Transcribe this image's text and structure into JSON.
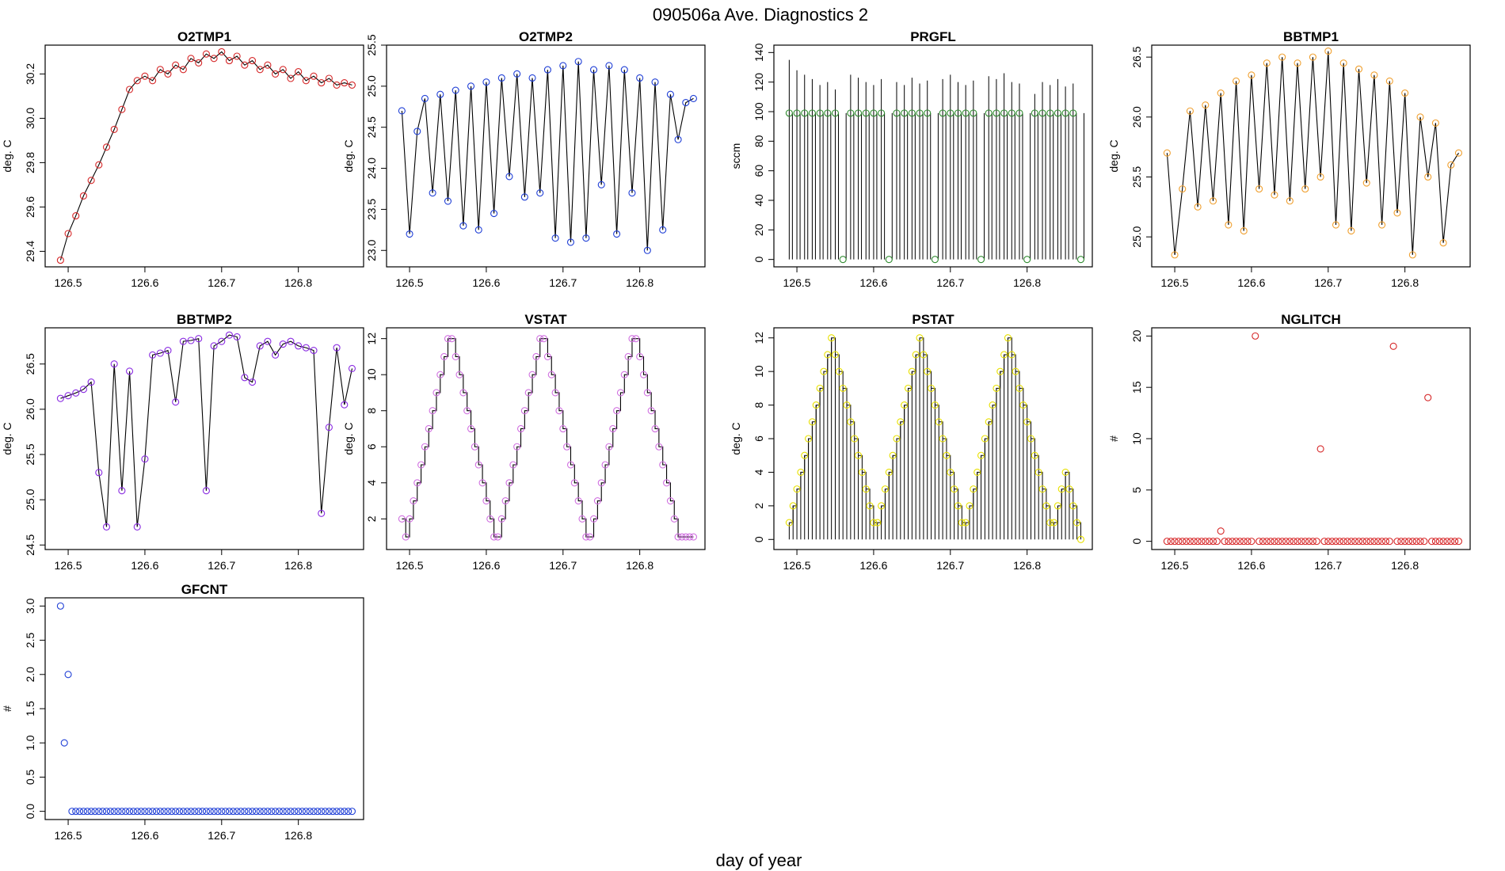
{
  "title": "090506a   Ave. Diagnostics 2",
  "xlabel": "day of year",
  "colors": {
    "line": "#000000",
    "frame": "#000000"
  },
  "chart_data": [
    {
      "name": "O2TMP1",
      "type": "line",
      "ylabel": "deg. C",
      "xlim": [
        126.47,
        126.885
      ],
      "ylim": [
        29.33,
        30.33
      ],
      "xticks": [
        126.5,
        126.6,
        126.7,
        126.8
      ],
      "yticks": [
        29.4,
        29.6,
        29.8,
        30.0,
        30.2
      ],
      "marker_color": "#d62728",
      "x": [
        126.49,
        126.5,
        126.51,
        126.52,
        126.53,
        126.54,
        126.55,
        126.56,
        126.57,
        126.58,
        126.59,
        126.6,
        126.61,
        126.62,
        126.63,
        126.64,
        126.65,
        126.66,
        126.67,
        126.68,
        126.69,
        126.7,
        126.71,
        126.72,
        126.73,
        126.74,
        126.75,
        126.76,
        126.77,
        126.78,
        126.79,
        126.8,
        126.81,
        126.82,
        126.83,
        126.84,
        126.85,
        126.86,
        126.87
      ],
      "values": [
        29.36,
        29.48,
        29.56,
        29.65,
        29.72,
        29.79,
        29.87,
        29.95,
        30.04,
        30.13,
        30.17,
        30.19,
        30.17,
        30.22,
        30.2,
        30.24,
        30.22,
        30.27,
        30.25,
        30.29,
        30.27,
        30.3,
        30.26,
        30.28,
        30.24,
        30.26,
        30.22,
        30.24,
        30.2,
        30.22,
        30.18,
        30.21,
        30.17,
        30.19,
        30.16,
        30.18,
        30.15,
        30.16,
        30.15
      ]
    },
    {
      "name": "O2TMP2",
      "type": "line",
      "ylabel": "deg. C",
      "xlim": [
        126.47,
        126.885
      ],
      "ylim": [
        22.8,
        25.5
      ],
      "xticks": [
        126.5,
        126.6,
        126.7,
        126.8
      ],
      "yticks": [
        23.0,
        23.5,
        24.0,
        24.5,
        25.0,
        25.5
      ],
      "marker_color": "#1f3fd6",
      "x": [
        126.49,
        126.5,
        126.51,
        126.52,
        126.53,
        126.54,
        126.55,
        126.56,
        126.57,
        126.58,
        126.59,
        126.6,
        126.61,
        126.62,
        126.63,
        126.64,
        126.65,
        126.66,
        126.67,
        126.68,
        126.69,
        126.7,
        126.71,
        126.72,
        126.73,
        126.74,
        126.75,
        126.76,
        126.77,
        126.78,
        126.79,
        126.8,
        126.81,
        126.82,
        126.83,
        126.84,
        126.85,
        126.86,
        126.87
      ],
      "values": [
        24.7,
        23.2,
        24.45,
        24.85,
        23.7,
        24.9,
        23.6,
        24.95,
        23.3,
        25.0,
        23.25,
        25.05,
        23.45,
        25.1,
        23.9,
        25.15,
        23.65,
        25.1,
        23.7,
        25.2,
        23.15,
        25.25,
        23.1,
        25.3,
        23.15,
        25.2,
        23.8,
        25.25,
        23.2,
        25.2,
        23.7,
        25.1,
        23.0,
        25.05,
        23.25,
        24.9,
        24.35,
        24.8,
        24.85
      ]
    },
    {
      "name": "PRGFL",
      "type": "spike",
      "ylabel": "sccm",
      "xlim": [
        126.47,
        126.885
      ],
      "ylim": [
        -5,
        145
      ],
      "xticks": [
        126.5,
        126.6,
        126.7,
        126.8
      ],
      "yticks": [
        0,
        20,
        40,
        60,
        80,
        100,
        120,
        140
      ],
      "marker_color": "#2e8b2e",
      "x": [
        126.49,
        126.5,
        126.51,
        126.52,
        126.53,
        126.54,
        126.55,
        126.56,
        126.57,
        126.58,
        126.59,
        126.6,
        126.61,
        126.62,
        126.63,
        126.64,
        126.65,
        126.66,
        126.67,
        126.68,
        126.69,
        126.7,
        126.71,
        126.72,
        126.73,
        126.74,
        126.75,
        126.76,
        126.77,
        126.78,
        126.79,
        126.8,
        126.81,
        126.82,
        126.83,
        126.84,
        126.85,
        126.86,
        126.87
      ],
      "peaks": [
        135,
        128,
        125,
        122,
        118,
        120,
        115,
        0,
        125,
        123,
        120,
        118,
        122,
        0,
        120,
        118,
        123,
        119,
        121,
        0,
        122,
        125,
        120,
        118,
        121,
        0,
        124,
        122,
        126,
        120,
        119,
        0,
        112,
        120,
        118,
        122,
        117,
        119,
        0
      ],
      "values": [
        99,
        99,
        99,
        99,
        99,
        99,
        99,
        0,
        99,
        99,
        99,
        99,
        99,
        0,
        99,
        99,
        99,
        99,
        99,
        0,
        99,
        99,
        99,
        99,
        99,
        0,
        99,
        99,
        99,
        99,
        99,
        0,
        99,
        99,
        99,
        99,
        99,
        99,
        0
      ]
    },
    {
      "name": "BBTMP1",
      "type": "line",
      "ylabel": "deg. C",
      "xlim": [
        126.47,
        126.885
      ],
      "ylim": [
        24.75,
        26.6
      ],
      "xticks": [
        126.5,
        126.6,
        126.7,
        126.8
      ],
      "yticks": [
        25.0,
        25.5,
        26.0,
        26.5
      ],
      "marker_color": "#f0a030",
      "x": [
        126.49,
        126.5,
        126.51,
        126.52,
        126.53,
        126.54,
        126.55,
        126.56,
        126.57,
        126.58,
        126.59,
        126.6,
        126.61,
        126.62,
        126.63,
        126.64,
        126.65,
        126.66,
        126.67,
        126.68,
        126.69,
        126.7,
        126.71,
        126.72,
        126.73,
        126.74,
        126.75,
        126.76,
        126.77,
        126.78,
        126.79,
        126.8,
        126.81,
        126.82,
        126.83,
        126.84,
        126.85,
        126.86,
        126.87
      ],
      "values": [
        25.7,
        24.85,
        25.4,
        26.05,
        25.25,
        26.1,
        25.3,
        26.2,
        25.1,
        26.3,
        25.05,
        26.35,
        25.4,
        26.45,
        25.35,
        26.5,
        25.3,
        26.45,
        25.4,
        26.5,
        25.5,
        26.55,
        25.1,
        26.45,
        25.05,
        26.4,
        25.45,
        26.35,
        25.1,
        26.3,
        25.2,
        26.2,
        24.85,
        26.0,
        25.5,
        25.95,
        24.95,
        25.6,
        25.7
      ]
    },
    {
      "name": "BBTMP2",
      "type": "line",
      "ylabel": "deg. C",
      "xlim": [
        126.47,
        126.885
      ],
      "ylim": [
        24.45,
        26.9
      ],
      "xticks": [
        126.5,
        126.6,
        126.7,
        126.8
      ],
      "yticks": [
        24.5,
        25.0,
        25.5,
        26.0,
        26.5
      ],
      "marker_color": "#8a2be2",
      "x": [
        126.49,
        126.5,
        126.51,
        126.52,
        126.53,
        126.54,
        126.55,
        126.56,
        126.57,
        126.58,
        126.59,
        126.6,
        126.61,
        126.62,
        126.63,
        126.64,
        126.65,
        126.66,
        126.67,
        126.68,
        126.69,
        126.7,
        126.71,
        126.72,
        126.73,
        126.74,
        126.75,
        126.76,
        126.77,
        126.78,
        126.79,
        126.8,
        126.81,
        126.82,
        126.83,
        126.84,
        126.85,
        126.86,
        126.87
      ],
      "values": [
        26.12,
        26.15,
        26.18,
        26.22,
        26.3,
        25.3,
        24.7,
        26.5,
        25.1,
        26.42,
        24.7,
        25.45,
        26.6,
        26.62,
        26.65,
        26.08,
        26.75,
        26.76,
        26.78,
        25.1,
        26.7,
        26.75,
        26.82,
        26.8,
        26.35,
        26.3,
        26.7,
        26.75,
        26.6,
        26.72,
        26.75,
        26.7,
        26.68,
        26.65,
        24.85,
        25.8,
        26.68,
        26.05,
        26.45
      ]
    },
    {
      "name": "VSTAT",
      "type": "step",
      "ylabel": "deg. C",
      "xlim": [
        126.47,
        126.885
      ],
      "ylim": [
        0.3,
        12.6
      ],
      "xticks": [
        126.5,
        126.6,
        126.7,
        126.8
      ],
      "yticks": [
        2,
        4,
        6,
        8,
        10,
        12
      ],
      "marker_color": "#d070e0",
      "x": [
        126.49,
        126.495,
        126.5,
        126.505,
        126.51,
        126.515,
        126.52,
        126.525,
        126.53,
        126.535,
        126.54,
        126.545,
        126.55,
        126.555,
        126.56,
        126.565,
        126.57,
        126.575,
        126.58,
        126.585,
        126.59,
        126.595,
        126.6,
        126.605,
        126.61,
        126.615,
        126.62,
        126.625,
        126.63,
        126.635,
        126.64,
        126.645,
        126.65,
        126.655,
        126.66,
        126.665,
        126.67,
        126.675,
        126.68,
        126.685,
        126.69,
        126.695,
        126.7,
        126.705,
        126.71,
        126.715,
        126.72,
        126.725,
        126.73,
        126.735,
        126.74,
        126.745,
        126.75,
        126.755,
        126.76,
        126.765,
        126.77,
        126.775,
        126.78,
        126.785,
        126.79,
        126.795,
        126.8,
        126.805,
        126.81,
        126.815,
        126.82,
        126.825,
        126.83,
        126.835,
        126.84,
        126.845,
        126.85,
        126.855,
        126.86,
        126.865,
        126.87
      ],
      "values": [
        2,
        1,
        2,
        3,
        4,
        5,
        6,
        7,
        8,
        9,
        10,
        11,
        12,
        12,
        11,
        10,
        9,
        8,
        7,
        6,
        5,
        4,
        3,
        2,
        1,
        1,
        2,
        3,
        4,
        5,
        6,
        7,
        8,
        9,
        10,
        11,
        12,
        12,
        11,
        10,
        9,
        8,
        7,
        6,
        5,
        4,
        3,
        2,
        1,
        1,
        2,
        3,
        4,
        5,
        6,
        7,
        8,
        9,
        10,
        11,
        12,
        12,
        11,
        10,
        9,
        8,
        7,
        6,
        5,
        4,
        3,
        2,
        1,
        1,
        1,
        1,
        1
      ]
    },
    {
      "name": "PSTAT",
      "type": "spike-step",
      "ylabel": "deg. C",
      "xlim": [
        126.47,
        126.885
      ],
      "ylim": [
        -0.6,
        12.6
      ],
      "xticks": [
        126.5,
        126.6,
        126.7,
        126.8
      ],
      "yticks": [
        0,
        2,
        4,
        6,
        8,
        10,
        12
      ],
      "marker_color": "#e8e000",
      "x": [
        126.49,
        126.495,
        126.5,
        126.505,
        126.51,
        126.515,
        126.52,
        126.525,
        126.53,
        126.535,
        126.54,
        126.545,
        126.55,
        126.555,
        126.56,
        126.565,
        126.57,
        126.575,
        126.58,
        126.585,
        126.59,
        126.595,
        126.6,
        126.605,
        126.61,
        126.615,
        126.62,
        126.625,
        126.63,
        126.635,
        126.64,
        126.645,
        126.65,
        126.655,
        126.66,
        126.665,
        126.67,
        126.675,
        126.68,
        126.685,
        126.69,
        126.695,
        126.7,
        126.705,
        126.71,
        126.715,
        126.72,
        126.725,
        126.73,
        126.735,
        126.74,
        126.745,
        126.75,
        126.755,
        126.76,
        126.765,
        126.77,
        126.775,
        126.78,
        126.785,
        126.79,
        126.795,
        126.8,
        126.805,
        126.81,
        126.815,
        126.82,
        126.825,
        126.83,
        126.835,
        126.84,
        126.845,
        126.85,
        126.855,
        126.86,
        126.865,
        126.87
      ],
      "values": [
        1,
        2,
        3,
        4,
        5,
        6,
        7,
        8,
        9,
        10,
        11,
        12,
        11,
        10,
        9,
        8,
        7,
        6,
        5,
        4,
        3,
        2,
        1,
        1,
        2,
        3,
        4,
        5,
        6,
        7,
        8,
        9,
        10,
        11,
        12,
        11,
        10,
        9,
        8,
        7,
        6,
        5,
        4,
        3,
        2,
        1,
        1,
        2,
        3,
        4,
        5,
        6,
        7,
        8,
        9,
        10,
        11,
        12,
        11,
        10,
        9,
        8,
        7,
        6,
        5,
        4,
        3,
        2,
        1,
        1,
        2,
        3,
        4,
        3,
        2,
        1,
        0
      ]
    },
    {
      "name": "NGLITCH",
      "type": "scatter",
      "ylabel": "#",
      "xlim": [
        126.47,
        126.885
      ],
      "ylim": [
        -0.8,
        20.8
      ],
      "xticks": [
        126.5,
        126.6,
        126.7,
        126.8
      ],
      "yticks": [
        0,
        5,
        10,
        15,
        20
      ],
      "marker_color": "#d62728",
      "x": [
        126.49,
        126.495,
        126.5,
        126.505,
        126.51,
        126.515,
        126.52,
        126.525,
        126.53,
        126.535,
        126.54,
        126.545,
        126.55,
        126.555,
        126.56,
        126.565,
        126.57,
        126.575,
        126.58,
        126.585,
        126.59,
        126.595,
        126.6,
        126.605,
        126.61,
        126.615,
        126.62,
        126.625,
        126.63,
        126.635,
        126.64,
        126.645,
        126.65,
        126.655,
        126.66,
        126.665,
        126.67,
        126.675,
        126.68,
        126.685,
        126.69,
        126.695,
        126.7,
        126.705,
        126.71,
        126.715,
        126.72,
        126.725,
        126.73,
        126.735,
        126.74,
        126.745,
        126.75,
        126.755,
        126.76,
        126.765,
        126.77,
        126.775,
        126.78,
        126.785,
        126.79,
        126.795,
        126.8,
        126.805,
        126.81,
        126.815,
        126.82,
        126.825,
        126.83,
        126.835,
        126.84,
        126.845,
        126.85,
        126.855,
        126.86,
        126.865,
        126.87
      ],
      "values": [
        0,
        0,
        0,
        0,
        0,
        0,
        0,
        0,
        0,
        0,
        0,
        0,
        0,
        0,
        1,
        0,
        0,
        0,
        0,
        0,
        0,
        0,
        0,
        20,
        0,
        0,
        0,
        0,
        0,
        0,
        0,
        0,
        0,
        0,
        0,
        0,
        0,
        0,
        0,
        0,
        9,
        0,
        0,
        0,
        0,
        0,
        0,
        0,
        0,
        0,
        0,
        0,
        0,
        0,
        0,
        0,
        0,
        0,
        0,
        19,
        0,
        0,
        0,
        0,
        0,
        0,
        0,
        0,
        14,
        0,
        0,
        0,
        0,
        0,
        0,
        0,
        0
      ]
    },
    {
      "name": "GFCNT",
      "type": "scatter",
      "ylabel": "#",
      "xlim": [
        126.47,
        126.885
      ],
      "ylim": [
        -0.12,
        3.12
      ],
      "xticks": [
        126.5,
        126.6,
        126.7,
        126.8
      ],
      "yticks": [
        0.0,
        0.5,
        1.0,
        1.5,
        2.0,
        2.5,
        3.0
      ],
      "marker_color": "#1f3fd6",
      "x": [
        126.49,
        126.495,
        126.5,
        126.505,
        126.51,
        126.515,
        126.52,
        126.525,
        126.53,
        126.535,
        126.54,
        126.545,
        126.55,
        126.555,
        126.56,
        126.565,
        126.57,
        126.575,
        126.58,
        126.585,
        126.59,
        126.595,
        126.6,
        126.605,
        126.61,
        126.615,
        126.62,
        126.625,
        126.63,
        126.635,
        126.64,
        126.645,
        126.65,
        126.655,
        126.66,
        126.665,
        126.67,
        126.675,
        126.68,
        126.685,
        126.69,
        126.695,
        126.7,
        126.705,
        126.71,
        126.715,
        126.72,
        126.725,
        126.73,
        126.735,
        126.74,
        126.745,
        126.75,
        126.755,
        126.76,
        126.765,
        126.77,
        126.775,
        126.78,
        126.785,
        126.79,
        126.795,
        126.8,
        126.805,
        126.81,
        126.815,
        126.82,
        126.825,
        126.83,
        126.835,
        126.84,
        126.845,
        126.85,
        126.855,
        126.86,
        126.865,
        126.87
      ],
      "values": [
        3,
        1,
        2,
        0,
        0,
        0,
        0,
        0,
        0,
        0,
        0,
        0,
        0,
        0,
        0,
        0,
        0,
        0,
        0,
        0,
        0,
        0,
        0,
        0,
        0,
        0,
        0,
        0,
        0,
        0,
        0,
        0,
        0,
        0,
        0,
        0,
        0,
        0,
        0,
        0,
        0,
        0,
        0,
        0,
        0,
        0,
        0,
        0,
        0,
        0,
        0,
        0,
        0,
        0,
        0,
        0,
        0,
        0,
        0,
        0,
        0,
        0,
        0,
        0,
        0,
        0,
        0,
        0,
        0,
        0,
        0,
        0,
        0,
        0,
        0,
        0,
        0
      ]
    }
  ]
}
